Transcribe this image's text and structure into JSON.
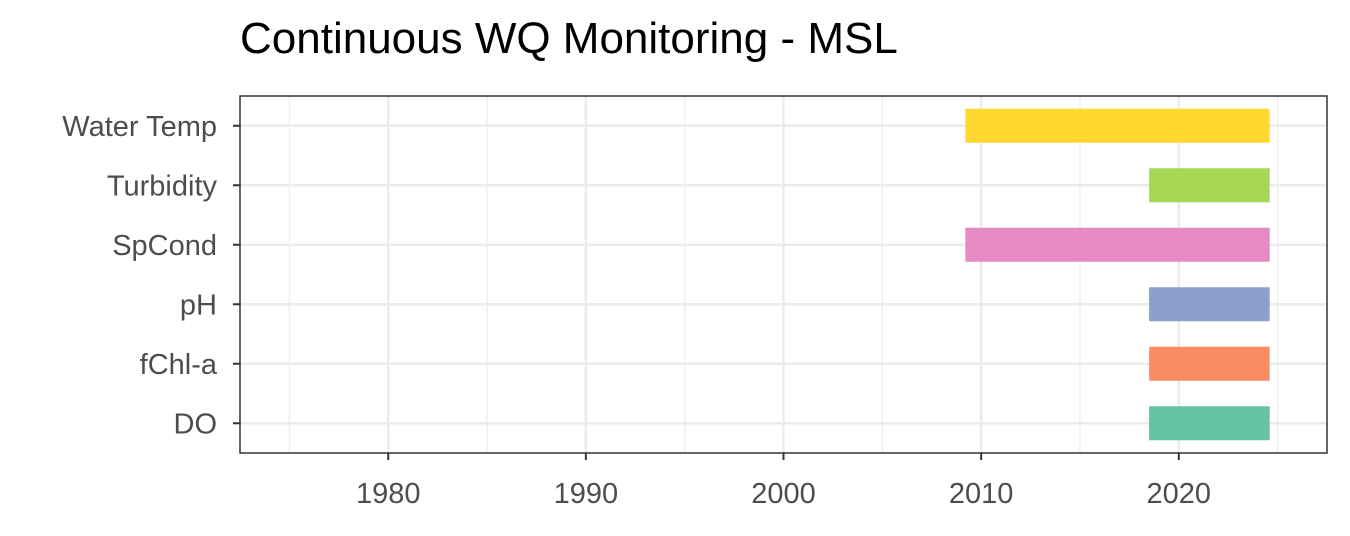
{
  "chart_data": {
    "type": "bar",
    "orientation": "horizontal-range",
    "title": "Continuous WQ Monitoring - MSL",
    "xlabel": "",
    "ylabel": "",
    "xlim": [
      1972.5,
      2027.5
    ],
    "x_ticks": [
      1980,
      1990,
      2000,
      2010,
      2020
    ],
    "x_tick_labels": [
      "1980",
      "1990",
      "2000",
      "2010",
      "2020"
    ],
    "grid": true,
    "legend": "none",
    "categories": [
      "Water Temp",
      "Turbidity",
      "SpCond",
      "pH",
      "fChl-a",
      "DO"
    ],
    "ranges": [
      {
        "category": "Water Temp",
        "start": 2009.2,
        "end": 2024.6,
        "color": "#ffd92f"
      },
      {
        "category": "Turbidity",
        "start": 2018.5,
        "end": 2024.6,
        "color": "#a6d854"
      },
      {
        "category": "SpCond",
        "start": 2009.2,
        "end": 2024.6,
        "color": "#e78ac3"
      },
      {
        "category": "pH",
        "start": 2018.5,
        "end": 2024.6,
        "color": "#8da0cb"
      },
      {
        "category": "fChl-a",
        "start": 2018.5,
        "end": 2024.6,
        "color": "#fc8d62"
      },
      {
        "category": "DO",
        "start": 2018.5,
        "end": 2024.6,
        "color": "#66c2a5"
      }
    ]
  }
}
